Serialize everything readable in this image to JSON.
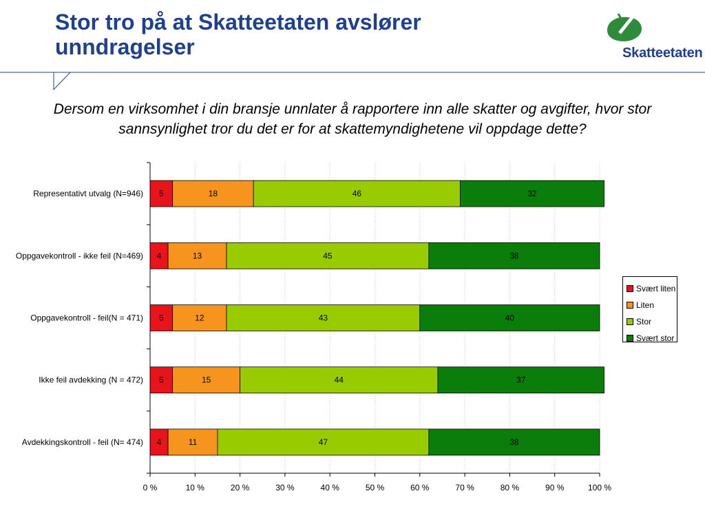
{
  "header": {
    "title": "Stor tro på at Skatteetaten avslører unndragelser",
    "logo_text": "Skatteetaten",
    "logo_icon": "skatteetaten-leaf-logo-icon",
    "brand_color": "#1f3f8f",
    "logo_color": "#2e8b3a"
  },
  "question": "Dersom en virksomhet i din bransje unnlater å rapportere inn alle skatter og avgifter, hvor stor sannsynlighet tror du det er for at skattemyndighetene vil oppdage dette?",
  "chart_data": {
    "type": "bar",
    "orientation": "horizontal",
    "stacked": true,
    "title": "",
    "xlabel": "",
    "ylabel": "",
    "xlim": [
      0,
      100
    ],
    "x_ticks": [
      "0 %",
      "10 %",
      "20 %",
      "30 %",
      "40 %",
      "50 %",
      "60 %",
      "70 %",
      "80 %",
      "90 %",
      "100 %"
    ],
    "grid": true,
    "legend_position": "right",
    "categories": [
      "Representativt utvalg (N=946)",
      "Oppgavekontroll - ikke feil (N=469)",
      "Oppgavekontroll - feil(N = 471)",
      "Ikke feil avdekking (N = 472)",
      "Avdekkingskontroll - feil (N= 474)"
    ],
    "series": [
      {
        "name": "Svært liten",
        "color": "#e8141b",
        "values": [
          5,
          4,
          5,
          5,
          4
        ]
      },
      {
        "name": "Liten",
        "color": "#f7941d",
        "values": [
          18,
          13,
          12,
          15,
          11
        ]
      },
      {
        "name": "Stor",
        "color": "#99cc00",
        "values": [
          46,
          45,
          43,
          44,
          47
        ]
      },
      {
        "name": "Svært stor",
        "color": "#0a7d0a",
        "values": [
          32,
          38,
          40,
          37,
          38
        ]
      }
    ]
  }
}
